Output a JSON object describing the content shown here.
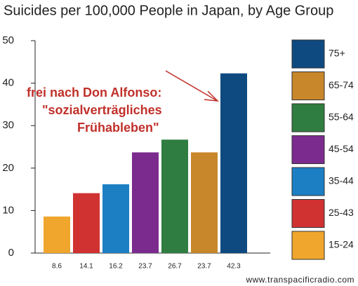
{
  "chart_data": {
    "type": "bar",
    "title": "Suicides per 100,000 People in Japan, by Age Group",
    "categories": [
      "15-24",
      "25-43",
      "35-44",
      "45-54",
      "55-64",
      "65-74",
      "75+"
    ],
    "values": [
      8.6,
      14.1,
      16.2,
      23.7,
      26.7,
      23.7,
      42.3
    ],
    "colors": [
      "#f0a62c",
      "#d03232",
      "#1c7fc3",
      "#7b2b8e",
      "#2f7d40",
      "#c8872a",
      "#0e4a80"
    ],
    "ylim": [
      0,
      50
    ],
    "yticks": [
      0,
      10,
      20,
      30,
      40,
      50
    ],
    "annotation": [
      "frei nach Don Alfonso:",
      "\"sozialverträgliches",
      "Frühableben\""
    ],
    "source": "www.transpacificradio.com"
  }
}
